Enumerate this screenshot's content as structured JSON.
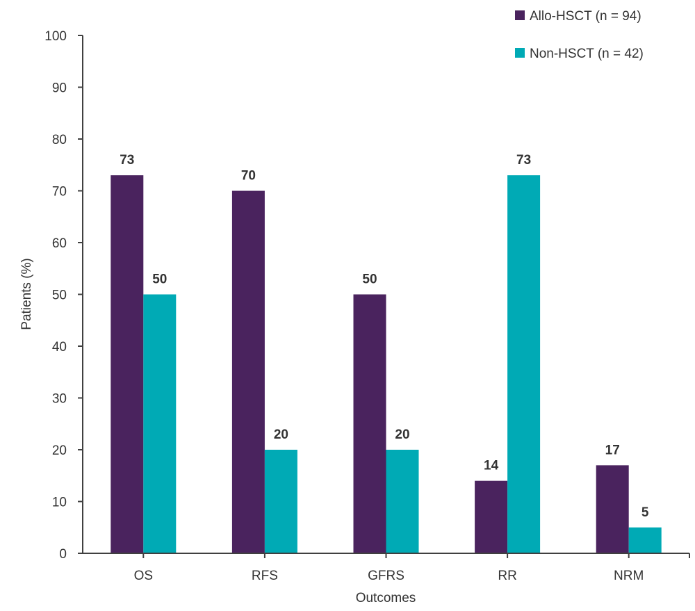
{
  "chart_data": {
    "type": "bar",
    "title": "",
    "xlabel": "Outcomes",
    "ylabel": "Patients (%)",
    "ylim": [
      0,
      100
    ],
    "yticks": [
      0,
      10,
      20,
      30,
      40,
      50,
      60,
      70,
      80,
      90,
      100
    ],
    "grid": false,
    "legend_position": "top-right",
    "categories": [
      "OS",
      "RFS",
      "GFRS",
      "RR",
      "NRM"
    ],
    "series": [
      {
        "name": "Allo-HSCT (n = 94)",
        "color": "#4a235e",
        "values": [
          73,
          70,
          50,
          14,
          17
        ]
      },
      {
        "name": "Non-HSCT (n = 42)",
        "color": "#00aab5",
        "values": [
          50,
          20,
          20,
          73,
          5
        ]
      }
    ],
    "axis_color": "#404040",
    "text_color": "#333333"
  }
}
